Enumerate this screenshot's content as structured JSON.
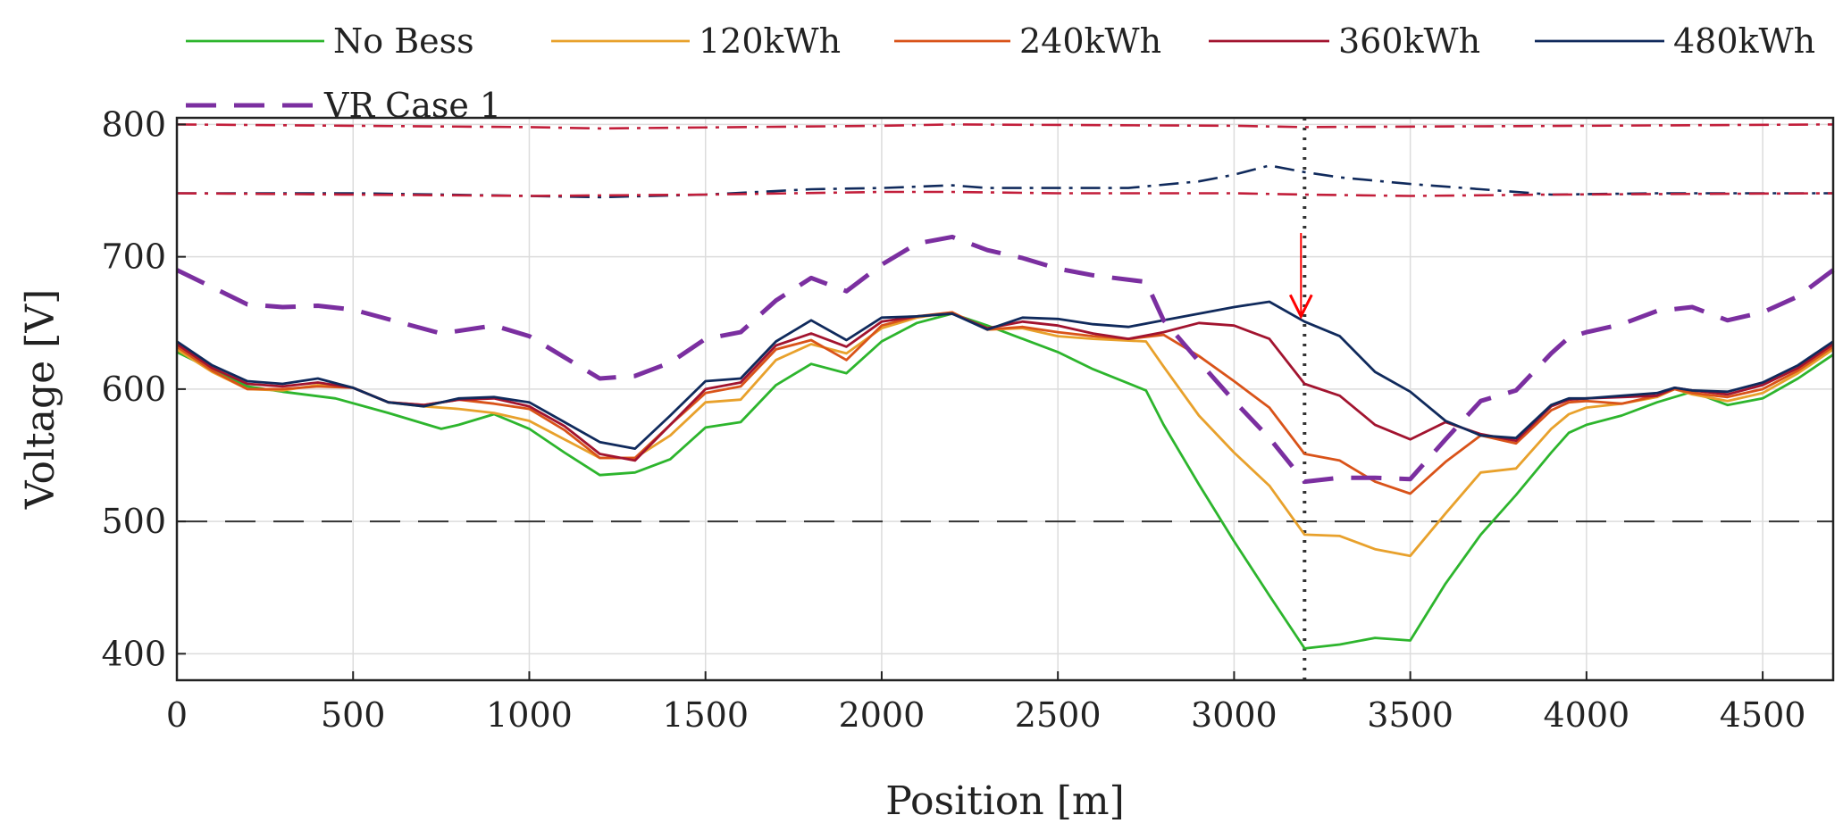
{
  "chart_data": {
    "type": "line",
    "title": "",
    "xlabel": "Position [m]",
    "ylabel": "Voltage [V]",
    "xlim": [
      0,
      4700
    ],
    "ylim": [
      380,
      805
    ],
    "xticks": [
      0,
      500,
      1000,
      1500,
      2000,
      2500,
      3000,
      3500,
      4000,
      4500
    ],
    "yticks": [
      400,
      500,
      600,
      700,
      800
    ],
    "grid": true,
    "legend_position": "top",
    "series": [
      {
        "name": "No Bess",
        "color": "#2db52d",
        "style": "solid",
        "x": [
          0,
          100,
          200,
          300,
          450,
          600,
          750,
          800,
          900,
          1000,
          1100,
          1200,
          1300,
          1400,
          1500,
          1600,
          1700,
          1800,
          1900,
          2000,
          2100,
          2200,
          2300,
          2400,
          2500,
          2600,
          2750,
          2800,
          2900,
          3000,
          3100,
          3200,
          3300,
          3400,
          3500,
          3600,
          3700,
          3800,
          3900,
          3950,
          4000,
          4100,
          4200,
          4300,
          4400,
          4500,
          4600,
          4700
        ],
        "y": [
          628,
          615,
          602,
          598,
          593,
          582,
          570,
          573,
          581,
          570,
          552,
          535,
          537,
          547,
          571,
          575,
          603,
          619,
          612,
          636,
          650,
          657,
          648,
          638,
          628,
          615,
          599,
          573,
          528,
          485,
          444,
          404,
          407,
          412,
          410,
          453,
          490,
          520,
          552,
          567,
          573,
          580,
          590,
          598,
          588,
          593,
          608,
          626
        ]
      },
      {
        "name": "120kWh",
        "color": "#e8a12c",
        "style": "solid",
        "x": [
          0,
          100,
          200,
          300,
          400,
          500,
          600,
          700,
          800,
          900,
          1000,
          1100,
          1200,
          1300,
          1400,
          1500,
          1600,
          1700,
          1800,
          1900,
          2000,
          2100,
          2200,
          2300,
          2400,
          2500,
          2600,
          2750,
          2800,
          2900,
          3000,
          3100,
          3200,
          3300,
          3400,
          3500,
          3600,
          3700,
          3800,
          3900,
          3950,
          4000,
          4100,
          4200,
          4250,
          4300,
          4400,
          4500,
          4600,
          4700
        ],
        "y": [
          630,
          613,
          600,
          599,
          603,
          601,
          590,
          587,
          585,
          582,
          576,
          562,
          548,
          548,
          565,
          590,
          592,
          622,
          634,
          627,
          646,
          654,
          658,
          645,
          646,
          640,
          638,
          636,
          617,
          580,
          552,
          527,
          490,
          489,
          479,
          474,
          506,
          537,
          540,
          570,
          581,
          586,
          589,
          594,
          600,
          596,
          591,
          597,
          612,
          630
        ]
      },
      {
        "name": "240kWh",
        "color": "#d95319",
        "style": "solid",
        "x": [
          0,
          100,
          200,
          300,
          400,
          500,
          600,
          700,
          800,
          900,
          1000,
          1100,
          1200,
          1300,
          1400,
          1500,
          1600,
          1700,
          1800,
          1900,
          2000,
          2100,
          2200,
          2300,
          2400,
          2500,
          2600,
          2700,
          2800,
          2900,
          3000,
          3100,
          3200,
          3300,
          3400,
          3500,
          3600,
          3700,
          3800,
          3900,
          3950,
          4000,
          4100,
          4200,
          4250,
          4300,
          4400,
          4500,
          4600,
          4700
        ],
        "y": [
          632,
          614,
          600,
          600,
          602,
          601,
          590,
          588,
          592,
          589,
          585,
          569,
          548,
          548,
          573,
          597,
          602,
          630,
          637,
          622,
          648,
          655,
          658,
          645,
          647,
          643,
          640,
          638,
          641,
          625,
          606,
          586,
          551,
          546,
          530,
          521,
          545,
          565,
          559,
          584,
          590,
          591,
          589,
          595,
          600,
          597,
          594,
          600,
          614,
          632
        ]
      },
      {
        "name": "360kWh",
        "color": "#a2142f",
        "style": "solid",
        "x": [
          0,
          100,
          200,
          300,
          400,
          500,
          600,
          700,
          800,
          900,
          1000,
          1100,
          1200,
          1300,
          1400,
          1500,
          1600,
          1700,
          1800,
          1900,
          2000,
          2100,
          2200,
          2300,
          2400,
          2500,
          2600,
          2700,
          2800,
          2900,
          3000,
          3100,
          3200,
          3300,
          3400,
          3500,
          3600,
          3700,
          3800,
          3900,
          3950,
          4000,
          4100,
          4200,
          4250,
          4300,
          4400,
          4500,
          4600,
          4700
        ],
        "y": [
          634,
          616,
          604,
          602,
          605,
          601,
          590,
          588,
          592,
          593,
          587,
          572,
          551,
          546,
          573,
          600,
          605,
          633,
          642,
          632,
          651,
          655,
          657,
          646,
          651,
          648,
          642,
          638,
          643,
          650,
          648,
          638,
          604,
          595,
          573,
          562,
          575,
          566,
          561,
          587,
          592,
          593,
          594,
          595,
          601,
          599,
          596,
          603,
          616,
          634
        ]
      },
      {
        "name": "480kWh",
        "color": "#102a5c",
        "style": "solid",
        "x": [
          0,
          100,
          200,
          300,
          400,
          500,
          600,
          700,
          800,
          900,
          1000,
          1100,
          1200,
          1300,
          1400,
          1500,
          1600,
          1700,
          1800,
          1900,
          2000,
          2100,
          2200,
          2300,
          2400,
          2500,
          2600,
          2700,
          2800,
          2900,
          3000,
          3100,
          3200,
          3300,
          3400,
          3500,
          3600,
          3700,
          3800,
          3900,
          3950,
          4000,
          4100,
          4200,
          4250,
          4300,
          4400,
          4500,
          4600,
          4700
        ],
        "y": [
          636,
          618,
          606,
          604,
          608,
          601,
          590,
          587,
          593,
          594,
          590,
          575,
          560,
          555,
          580,
          606,
          608,
          636,
          652,
          637,
          654,
          655,
          657,
          645,
          654,
          653,
          649,
          647,
          652,
          657,
          662,
          666,
          651,
          640,
          613,
          598,
          576,
          565,
          563,
          588,
          593,
          593,
          595,
          597,
          601,
          599,
          598,
          605,
          618,
          636
        ]
      },
      {
        "name": "VR Case 1",
        "color": "#7b2fa0",
        "style": "dashed",
        "x": [
          0,
          200,
          300,
          400,
          500,
          750,
          900,
          1000,
          1100,
          1200,
          1300,
          1400,
          1500,
          1600,
          1700,
          1800,
          1900,
          2000,
          2100,
          2200,
          2300,
          2400,
          2500,
          2600,
          2750,
          2800,
          2900,
          3000,
          3100,
          3200,
          3300,
          3400,
          3500,
          3600,
          3700,
          3800,
          3900,
          3950,
          4000,
          4100,
          4200,
          4300,
          4400,
          4500,
          4600,
          4700
        ],
        "y": [
          690,
          664,
          662,
          663,
          660,
          642,
          648,
          640,
          624,
          608,
          610,
          620,
          638,
          643,
          667,
          684,
          674,
          694,
          710,
          715,
          705,
          699,
          691,
          686,
          681,
          652,
          621,
          591,
          563,
          530,
          533,
          533,
          532,
          562,
          591,
          599,
          627,
          639,
          643,
          649,
          659,
          662,
          652,
          658,
          670,
          690
        ]
      },
      {
        "name": "",
        "color": "#102a5c",
        "style": "dashdot",
        "x": [
          0,
          500,
          1000,
          1200,
          1500,
          1800,
          2000,
          2200,
          2300,
          2500,
          2700,
          2900,
          3000,
          3100,
          3200,
          3300,
          3500,
          3700,
          3900,
          4200,
          4700
        ],
        "y": [
          748,
          748,
          746,
          745,
          747,
          751,
          752,
          754,
          752,
          752,
          752,
          757,
          762,
          769,
          764,
          760,
          755,
          751,
          747,
          748,
          748
        ]
      },
      {
        "name": "",
        "color": "#c21e3a",
        "style": "dashdot",
        "x": [
          0,
          1000,
          1500,
          2000,
          2200,
          2500,
          3000,
          3200,
          3500,
          3900,
          4700
        ],
        "y": [
          748,
          746,
          747,
          749,
          749,
          748,
          748,
          747,
          746,
          747,
          748
        ]
      },
      {
        "name": "",
        "color": "#c21e3a",
        "style": "dashdot",
        "x": [
          0,
          1000,
          1200,
          2000,
          2200,
          3000,
          3200,
          4000,
          4700
        ],
        "y": [
          800,
          798,
          797,
          799,
          800,
          799,
          798,
          799,
          800
        ]
      }
    ],
    "reference_lines": [
      {
        "type": "horizontal",
        "y": 500,
        "color": "#333333",
        "style": "dashed"
      },
      {
        "type": "vertical",
        "x": 3200,
        "color": "#333333",
        "style": "dotted"
      }
    ],
    "annotations": [
      {
        "type": "arrow",
        "x": 3200,
        "y_from": 718,
        "y_to": 655,
        "color": "#ff0000"
      }
    ]
  }
}
